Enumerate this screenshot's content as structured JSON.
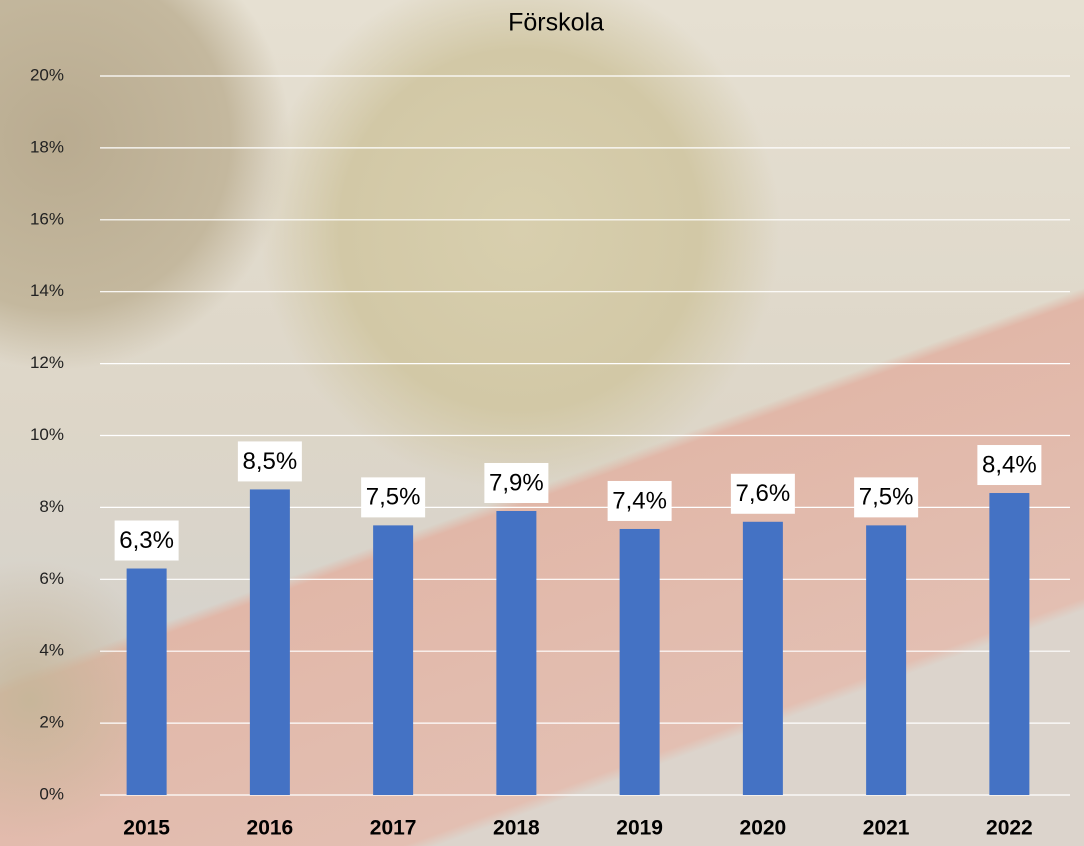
{
  "chart_data": {
    "type": "bar",
    "title": "Förskola",
    "categories": [
      "2015",
      "2016",
      "2017",
      "2018",
      "2019",
      "2020",
      "2021",
      "2022"
    ],
    "values": [
      6.3,
      8.5,
      7.5,
      7.9,
      7.4,
      7.6,
      7.5,
      8.4
    ],
    "value_labels": [
      "6,3%",
      "8,5%",
      "7,5%",
      "7,9%",
      "7,4%",
      "7,6%",
      "7,5%",
      "8,4%"
    ],
    "color": "#4472c4",
    "ylim": [
      0,
      20
    ],
    "yticks": [
      {
        "value": 0,
        "label": "0%"
      },
      {
        "value": 2,
        "label": "2%"
      },
      {
        "value": 4,
        "label": "4%"
      },
      {
        "value": 6,
        "label": "6%"
      },
      {
        "value": 8,
        "label": "8%"
      },
      {
        "value": 10,
        "label": "10%"
      },
      {
        "value": 12,
        "label": "12%"
      },
      {
        "value": 14,
        "label": "14%"
      },
      {
        "value": 16,
        "label": "16%"
      },
      {
        "value": 18,
        "label": "18%"
      },
      {
        "value": 20,
        "label": "20%"
      }
    ],
    "grid": true
  }
}
